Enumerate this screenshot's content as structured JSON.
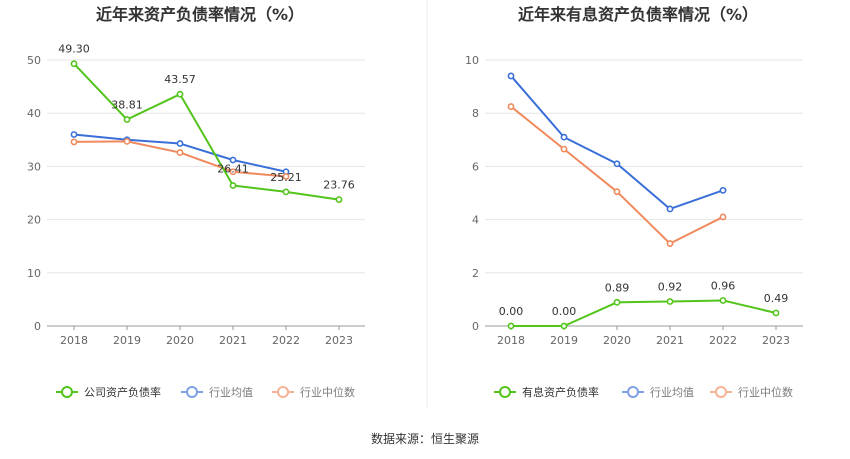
{
  "footer": {
    "source": "数据来源：恒生聚源"
  },
  "chart_data": [
    {
      "type": "line",
      "title": "近年来资产负债率情况（%）",
      "categories": [
        "2018",
        "2019",
        "2020",
        "2021",
        "2022",
        "2023"
      ],
      "ylim": [
        0,
        50
      ],
      "yticks": [
        0,
        10,
        20,
        30,
        40,
        50
      ],
      "grid": true,
      "legend_position": "bottom",
      "series": [
        {
          "name": "公司资产负债率",
          "color": "#52c41a",
          "values": [
            49.3,
            38.81,
            43.57,
            26.41,
            25.21,
            23.76
          ],
          "labels": [
            "49.30",
            "38.81",
            "43.57",
            "26.41",
            "25.21",
            "23.76"
          ]
        },
        {
          "name": "行业均值",
          "color": "#3a6fd8",
          "values": [
            36.0,
            35.0,
            34.3,
            31.2,
            29.0,
            null
          ]
        },
        {
          "name": "行业中位数",
          "color": "#f08a5d",
          "values": [
            34.6,
            34.7,
            32.6,
            29.0,
            28.1,
            null
          ]
        }
      ]
    },
    {
      "type": "line",
      "title": "近年来有息资产负债率情况（%）",
      "categories": [
        "2018",
        "2019",
        "2020",
        "2021",
        "2022",
        "2023"
      ],
      "ylim": [
        0,
        10
      ],
      "yticks": [
        0,
        2,
        4,
        6,
        8,
        10
      ],
      "grid": true,
      "legend_position": "bottom",
      "series": [
        {
          "name": "有息资产负债率",
          "color": "#52c41a",
          "values": [
            0.0,
            0.0,
            0.89,
            0.92,
            0.96,
            0.49
          ],
          "labels": [
            "0.00",
            "0.00",
            "0.89",
            "0.92",
            "0.96",
            "0.49"
          ]
        },
        {
          "name": "行业均值",
          "color": "#3a6fd8",
          "values": [
            9.4,
            7.1,
            6.1,
            4.4,
            5.1,
            null
          ]
        },
        {
          "name": "行业中位数",
          "color": "#f08a5d",
          "values": [
            8.25,
            6.65,
            5.05,
            3.1,
            4.1,
            null
          ]
        }
      ]
    }
  ]
}
